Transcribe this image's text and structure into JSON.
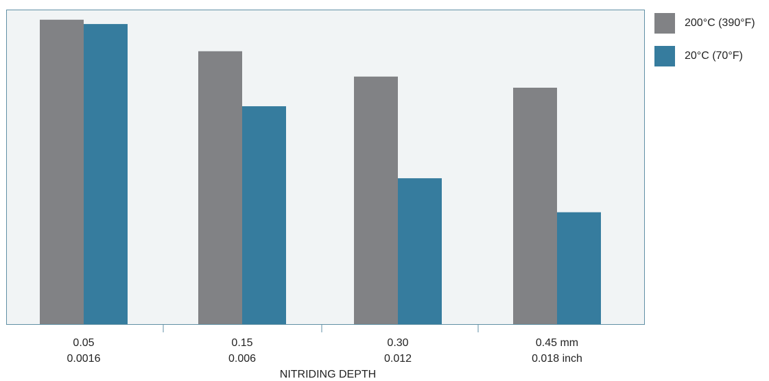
{
  "chart_data": {
    "type": "bar",
    "categories": [
      {
        "mm": "0.05",
        "inch": "0.0016"
      },
      {
        "mm": "0.15",
        "inch": "0.006"
      },
      {
        "mm": "0.30",
        "inch": "0.012"
      },
      {
        "mm": "0.45  mm",
        "inch": "0.018 inch"
      }
    ],
    "series": [
      {
        "name": "200°C (390°F)",
        "color": "#818285",
        "values": [
          98.5,
          88.3,
          80.1,
          76.5
        ]
      },
      {
        "name": "20°C (70°F)",
        "color": "#367c9e",
        "values": [
          97.1,
          70.5,
          47.2,
          36.2
        ]
      }
    ],
    "xlabel": "NITRIDING DEPTH",
    "ylabel": "",
    "ylim": [
      0,
      100
    ],
    "grid": false,
    "legend_position": "top-right outside",
    "plot_background": "#f1f4f5",
    "frame_color": "#5f8fa4"
  }
}
